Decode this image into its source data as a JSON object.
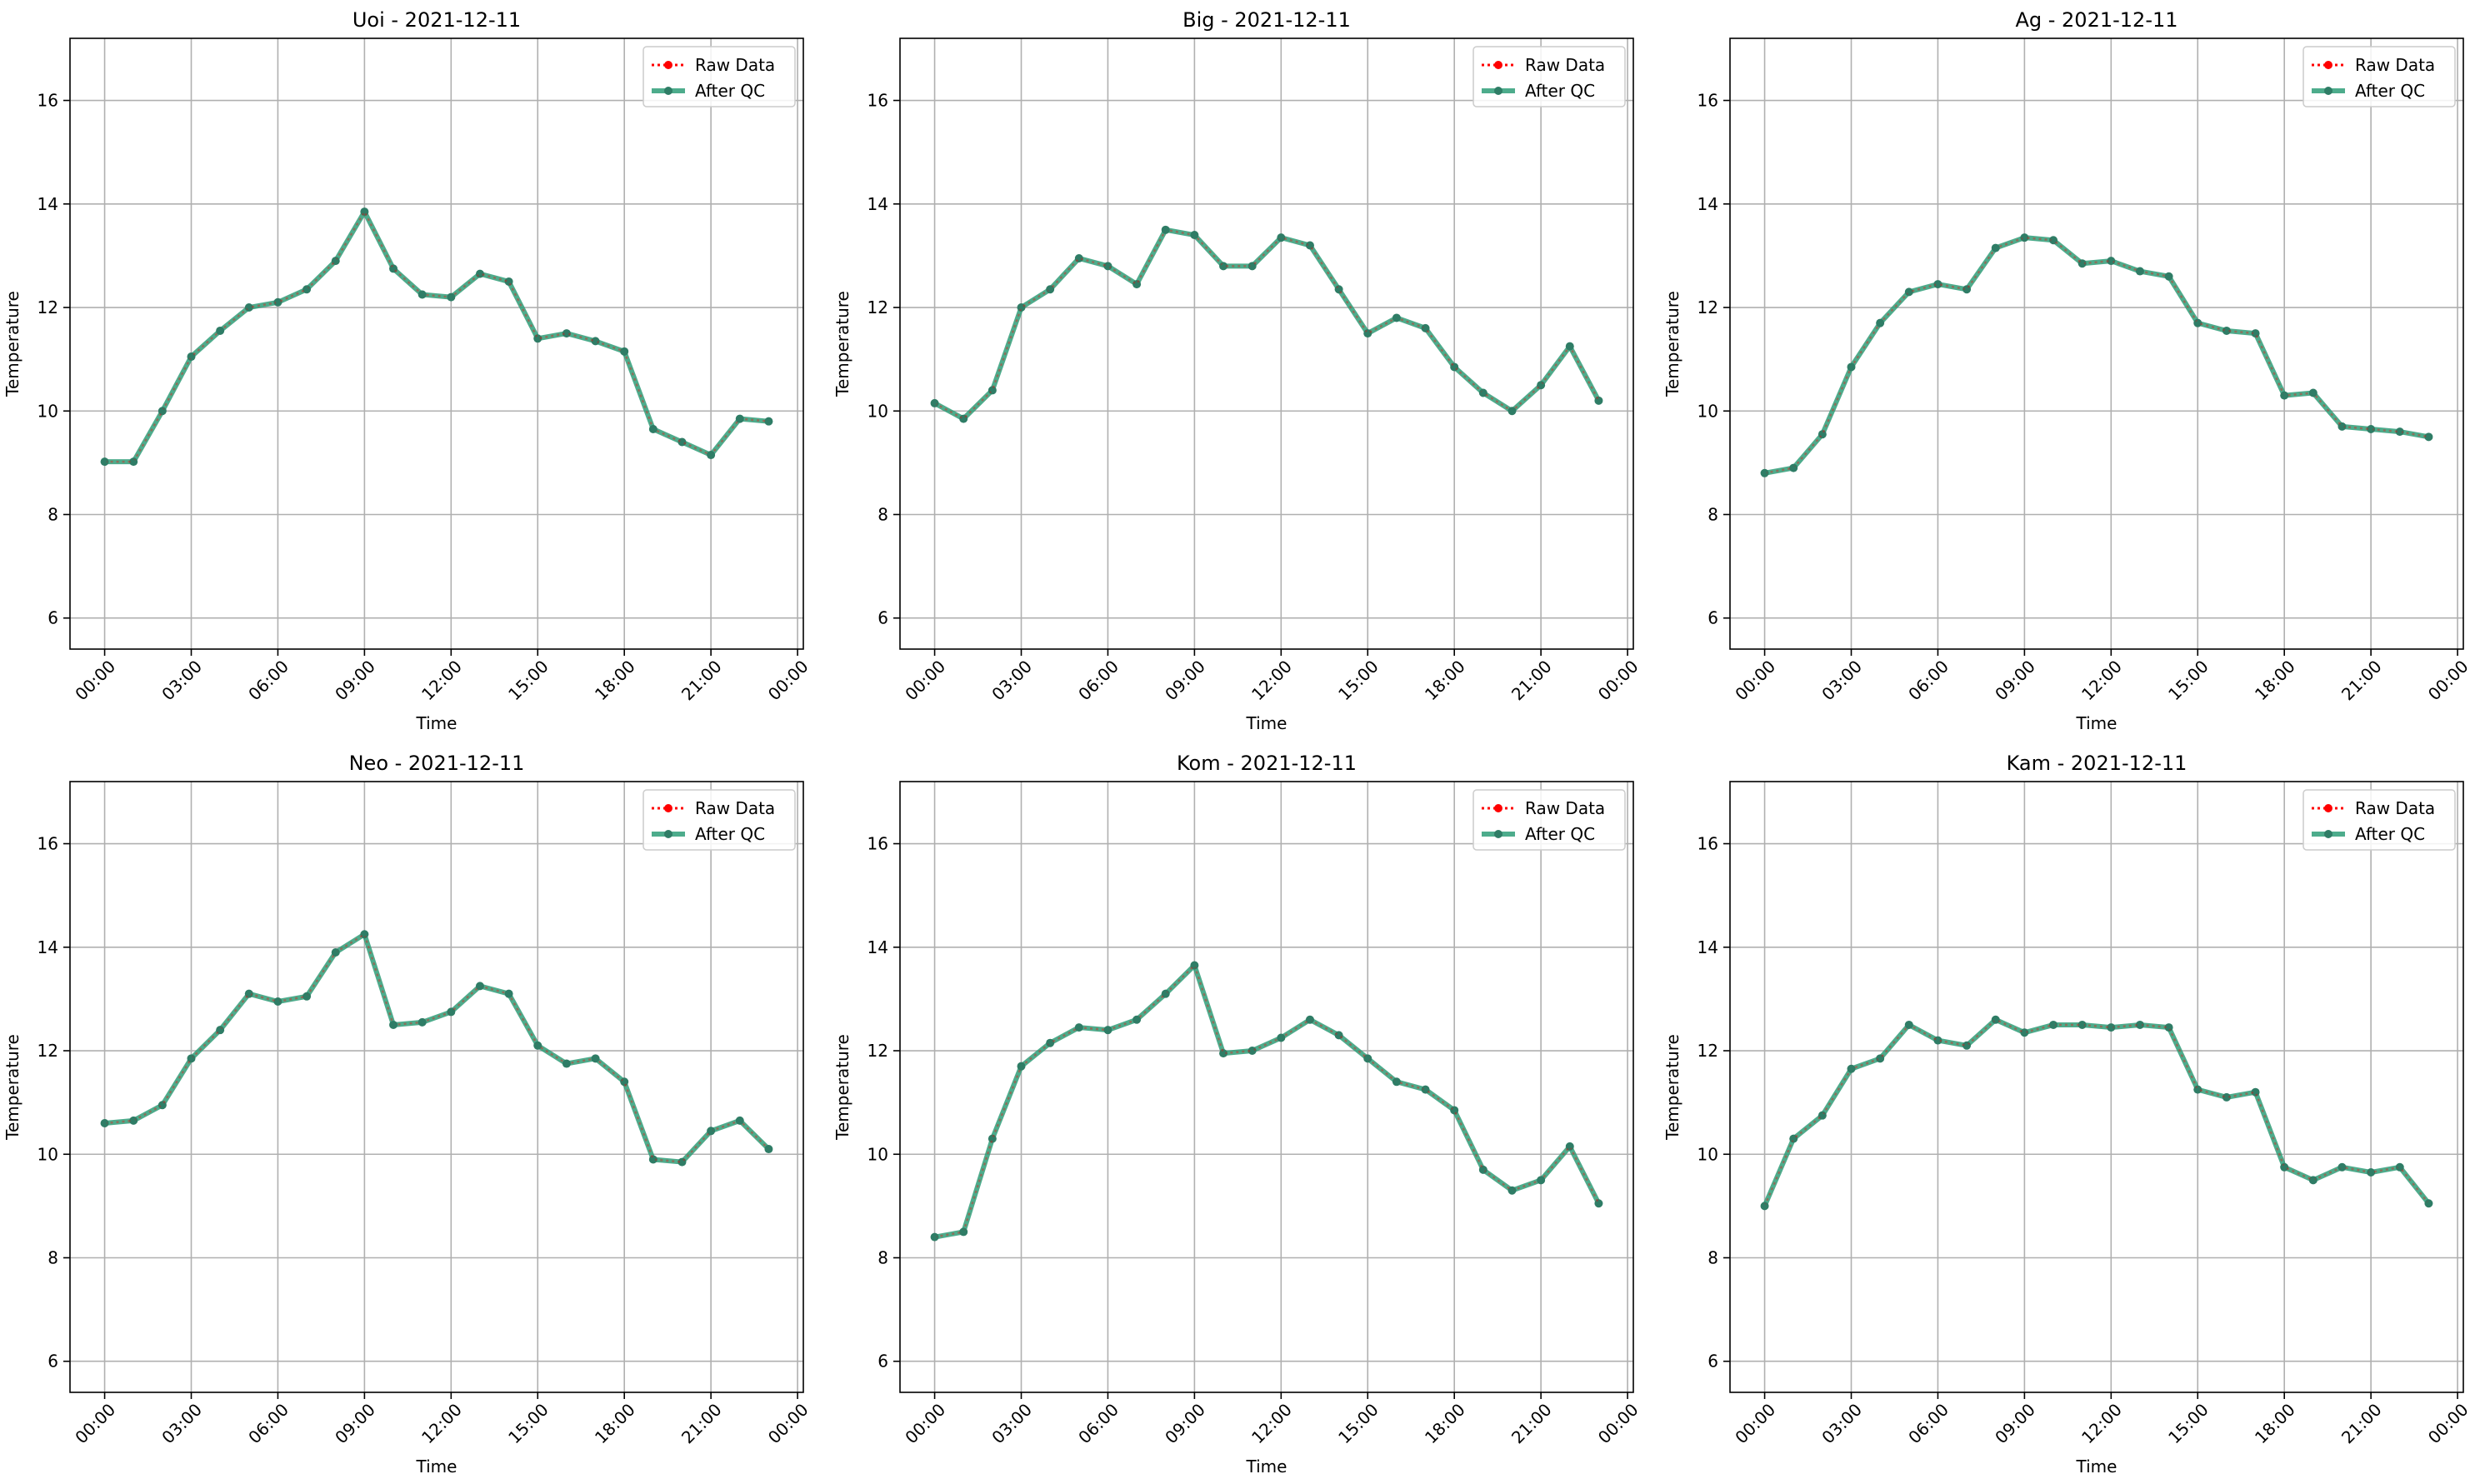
{
  "colors": {
    "raw": "#ff0000",
    "qc": "#2e9e78",
    "qc_marker": "#2f7d66"
  },
  "chart_data": [
    {
      "type": "line",
      "title": "Uoi - 2021-12-11",
      "xlabel": "Time",
      "ylabel": "Temperature",
      "x_hours": [
        0,
        1,
        2,
        3,
        4,
        5,
        6,
        7,
        8,
        9,
        10,
        11,
        12,
        13,
        14,
        15,
        16,
        17,
        18,
        19,
        20,
        21,
        22,
        23
      ],
      "xticks": [
        "00:00",
        "03:00",
        "06:00",
        "09:00",
        "12:00",
        "15:00",
        "18:00",
        "21:00",
        "00:00"
      ],
      "yticks": [
        "6",
        "8",
        "10",
        "12",
        "14",
        "16"
      ],
      "ylim": [
        5.4,
        17.2
      ],
      "xlim_hours": [
        -1.2,
        24.2
      ],
      "legend": {
        "position": "top-right",
        "entries": [
          "Raw Data",
          "After QC"
        ]
      },
      "series": [
        {
          "name": "Raw Data",
          "values": [
            9.02,
            9.02,
            10.0,
            11.05,
            11.55,
            12.0,
            12.1,
            12.35,
            12.9,
            13.85,
            12.75,
            12.25,
            12.2,
            12.65,
            12.5,
            11.4,
            11.5,
            11.35,
            11.15,
            9.65,
            9.4,
            9.15,
            9.85,
            9.8
          ]
        },
        {
          "name": "After QC",
          "values": [
            9.02,
            9.02,
            10.0,
            11.05,
            11.55,
            12.0,
            12.1,
            12.35,
            12.9,
            13.85,
            12.75,
            12.25,
            12.2,
            12.65,
            12.5,
            11.4,
            11.5,
            11.35,
            11.15,
            9.65,
            9.4,
            9.15,
            9.85,
            9.8
          ]
        }
      ]
    },
    {
      "type": "line",
      "title": "Big - 2021-12-11",
      "xlabel": "Time",
      "ylabel": "Temperature",
      "x_hours": [
        0,
        1,
        2,
        3,
        4,
        5,
        6,
        7,
        8,
        9,
        10,
        11,
        12,
        13,
        14,
        15,
        16,
        17,
        18,
        19,
        20,
        21,
        22,
        23
      ],
      "xticks": [
        "00:00",
        "03:00",
        "06:00",
        "09:00",
        "12:00",
        "15:00",
        "18:00",
        "21:00",
        "00:00"
      ],
      "yticks": [
        "6",
        "8",
        "10",
        "12",
        "14",
        "16"
      ],
      "ylim": [
        5.4,
        17.2
      ],
      "xlim_hours": [
        -1.2,
        24.2
      ],
      "legend": {
        "position": "top-right",
        "entries": [
          "Raw Data",
          "After QC"
        ]
      },
      "series": [
        {
          "name": "Raw Data",
          "values": [
            10.15,
            9.85,
            10.4,
            12.0,
            12.35,
            12.95,
            12.8,
            12.45,
            13.5,
            13.4,
            12.8,
            12.8,
            13.35,
            13.2,
            12.35,
            11.5,
            11.8,
            11.6,
            10.85,
            10.35,
            10.0,
            10.5,
            11.25,
            10.2
          ]
        },
        {
          "name": "After QC",
          "values": [
            10.15,
            9.85,
            10.4,
            12.0,
            12.35,
            12.95,
            12.8,
            12.45,
            13.5,
            13.4,
            12.8,
            12.8,
            13.35,
            13.2,
            12.35,
            11.5,
            11.8,
            11.6,
            10.85,
            10.35,
            10.0,
            10.5,
            11.25,
            10.2
          ]
        }
      ]
    },
    {
      "type": "line",
      "title": "Ag - 2021-12-11",
      "xlabel": "Time",
      "ylabel": "Temperature",
      "x_hours": [
        0,
        1,
        2,
        3,
        4,
        5,
        6,
        7,
        8,
        9,
        10,
        11,
        12,
        13,
        14,
        15,
        16,
        17,
        18,
        19,
        20,
        21,
        22,
        23
      ],
      "xticks": [
        "00:00",
        "03:00",
        "06:00",
        "09:00",
        "12:00",
        "15:00",
        "18:00",
        "21:00",
        "00:00"
      ],
      "yticks": [
        "6",
        "8",
        "10",
        "12",
        "14",
        "16"
      ],
      "ylim": [
        5.4,
        17.2
      ],
      "xlim_hours": [
        -1.2,
        24.2
      ],
      "legend": {
        "position": "top-right",
        "entries": [
          "Raw Data",
          "After QC"
        ]
      },
      "series": [
        {
          "name": "Raw Data",
          "values": [
            8.8,
            8.9,
            9.55,
            10.85,
            11.7,
            12.3,
            12.45,
            12.35,
            13.15,
            13.35,
            13.3,
            12.85,
            12.9,
            12.7,
            12.6,
            11.7,
            11.55,
            11.5,
            10.3,
            10.35,
            9.7,
            9.65,
            9.6,
            9.5
          ]
        },
        {
          "name": "After QC",
          "values": [
            8.8,
            8.9,
            9.55,
            10.85,
            11.7,
            12.3,
            12.45,
            12.35,
            13.15,
            13.35,
            13.3,
            12.85,
            12.9,
            12.7,
            12.6,
            11.7,
            11.55,
            11.5,
            10.3,
            10.35,
            9.7,
            9.65,
            9.6,
            9.5
          ]
        }
      ]
    },
    {
      "type": "line",
      "title": "Neo - 2021-12-11",
      "xlabel": "Time",
      "ylabel": "Temperature",
      "x_hours": [
        0,
        1,
        2,
        3,
        4,
        5,
        6,
        7,
        8,
        9,
        10,
        11,
        12,
        13,
        14,
        15,
        16,
        17,
        18,
        19,
        20,
        21,
        22,
        23
      ],
      "xticks": [
        "00:00",
        "03:00",
        "06:00",
        "09:00",
        "12:00",
        "15:00",
        "18:00",
        "21:00",
        "00:00"
      ],
      "yticks": [
        "6",
        "8",
        "10",
        "12",
        "14",
        "16"
      ],
      "ylim": [
        5.4,
        17.2
      ],
      "xlim_hours": [
        -1.2,
        24.2
      ],
      "legend": {
        "position": "top-right",
        "entries": [
          "Raw Data",
          "After QC"
        ]
      },
      "series": [
        {
          "name": "Raw Data",
          "values": [
            10.6,
            10.65,
            10.95,
            11.85,
            12.4,
            13.1,
            12.95,
            13.05,
            13.9,
            14.25,
            12.5,
            12.55,
            12.75,
            13.25,
            13.1,
            12.1,
            11.75,
            11.85,
            11.4,
            9.9,
            9.85,
            10.45,
            10.65,
            10.1
          ]
        },
        {
          "name": "After QC",
          "values": [
            10.6,
            10.65,
            10.95,
            11.85,
            12.4,
            13.1,
            12.95,
            13.05,
            13.9,
            14.25,
            12.5,
            12.55,
            12.75,
            13.25,
            13.1,
            12.1,
            11.75,
            11.85,
            11.4,
            9.9,
            9.85,
            10.45,
            10.65,
            10.1
          ]
        }
      ]
    },
    {
      "type": "line",
      "title": "Kom - 2021-12-11",
      "xlabel": "Time",
      "ylabel": "Temperature",
      "x_hours": [
        0,
        1,
        2,
        3,
        4,
        5,
        6,
        7,
        8,
        9,
        10,
        11,
        12,
        13,
        14,
        15,
        16,
        17,
        18,
        19,
        20,
        21,
        22,
        23
      ],
      "xticks": [
        "00:00",
        "03:00",
        "06:00",
        "09:00",
        "12:00",
        "15:00",
        "18:00",
        "21:00",
        "00:00"
      ],
      "yticks": [
        "6",
        "8",
        "10",
        "12",
        "14",
        "16"
      ],
      "ylim": [
        5.4,
        17.2
      ],
      "xlim_hours": [
        -1.2,
        24.2
      ],
      "legend": {
        "position": "top-right",
        "entries": [
          "Raw Data",
          "After QC"
        ]
      },
      "series": [
        {
          "name": "Raw Data",
          "values": [
            8.4,
            8.5,
            10.3,
            11.7,
            12.15,
            12.45,
            12.4,
            12.6,
            13.1,
            13.65,
            11.95,
            12.0,
            12.25,
            12.6,
            12.3,
            11.85,
            11.4,
            11.25,
            10.85,
            9.7,
            9.3,
            9.5,
            10.15,
            9.05
          ]
        },
        {
          "name": "After QC",
          "values": [
            8.4,
            8.5,
            10.3,
            11.7,
            12.15,
            12.45,
            12.4,
            12.6,
            13.1,
            13.65,
            11.95,
            12.0,
            12.25,
            12.6,
            12.3,
            11.85,
            11.4,
            11.25,
            10.85,
            9.7,
            9.3,
            9.5,
            10.15,
            9.05
          ]
        }
      ]
    },
    {
      "type": "line",
      "title": "Kam - 2021-12-11",
      "xlabel": "Time",
      "ylabel": "Temperature",
      "x_hours": [
        0,
        1,
        2,
        3,
        4,
        5,
        6,
        7,
        8,
        9,
        10,
        11,
        12,
        13,
        14,
        15,
        16,
        17,
        18,
        19,
        20,
        21,
        22,
        23
      ],
      "xticks": [
        "00:00",
        "03:00",
        "06:00",
        "09:00",
        "12:00",
        "15:00",
        "18:00",
        "21:00",
        "00:00"
      ],
      "yticks": [
        "6",
        "8",
        "10",
        "12",
        "14",
        "16"
      ],
      "ylim": [
        5.4,
        17.2
      ],
      "xlim_hours": [
        -1.2,
        24.2
      ],
      "legend": {
        "position": "top-right",
        "entries": [
          "Raw Data",
          "After QC"
        ]
      },
      "series": [
        {
          "name": "Raw Data",
          "values": [
            9.0,
            10.3,
            10.75,
            11.65,
            11.85,
            12.5,
            12.2,
            12.1,
            12.6,
            12.35,
            12.5,
            12.5,
            12.45,
            12.5,
            12.45,
            11.25,
            11.1,
            11.2,
            9.75,
            9.5,
            9.75,
            9.65,
            9.75,
            9.05
          ]
        },
        {
          "name": "After QC",
          "values": [
            9.0,
            10.3,
            10.75,
            11.65,
            11.85,
            12.5,
            12.2,
            12.1,
            12.6,
            12.35,
            12.5,
            12.5,
            12.45,
            12.5,
            12.45,
            11.25,
            11.1,
            11.2,
            9.75,
            9.5,
            9.75,
            9.65,
            9.75,
            9.05
          ]
        }
      ]
    }
  ]
}
